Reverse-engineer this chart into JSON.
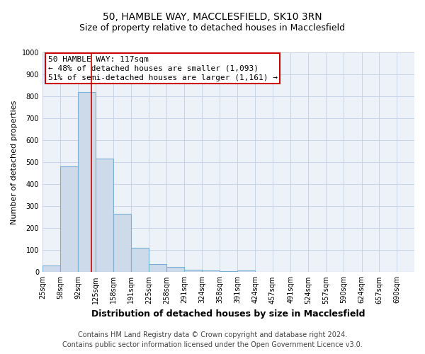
{
  "title": "50, HAMBLE WAY, MACCLESFIELD, SK10 3RN",
  "subtitle": "Size of property relative to detached houses in Macclesfield",
  "xlabel": "Distribution of detached houses by size in Macclesfield",
  "ylabel": "Number of detached properties",
  "footer_line1": "Contains HM Land Registry data © Crown copyright and database right 2024.",
  "footer_line2": "Contains public sector information licensed under the Open Government Licence v3.0.",
  "bin_labels": [
    "25sqm",
    "58sqm",
    "92sqm",
    "125sqm",
    "158sqm",
    "191sqm",
    "225sqm",
    "258sqm",
    "291sqm",
    "324sqm",
    "358sqm",
    "391sqm",
    "424sqm",
    "457sqm",
    "491sqm",
    "524sqm",
    "557sqm",
    "590sqm",
    "624sqm",
    "657sqm",
    "690sqm"
  ],
  "bin_edges": [
    25,
    58,
    92,
    125,
    158,
    191,
    225,
    258,
    291,
    324,
    358,
    391,
    424,
    457,
    491,
    524,
    557,
    590,
    624,
    657,
    690
  ],
  "bin_width": 33,
  "bin_counts": [
    30,
    480,
    820,
    515,
    265,
    110,
    38,
    22,
    12,
    8,
    5,
    8,
    0,
    0,
    0,
    0,
    0,
    0,
    0,
    0,
    0
  ],
  "bar_color": "#ccdaea",
  "bar_edge_color": "#7bafd4",
  "bar_edge_width": 0.8,
  "red_line_x": 117,
  "red_line_color": "#cc0000",
  "annotation_text_line1": "50 HAMBLE WAY: 117sqm",
  "annotation_text_line2": "← 48% of detached houses are smaller (1,093)",
  "annotation_text_line3": "51% of semi-detached houses are larger (1,161) →",
  "annotation_box_color": "#cc0000",
  "ylim": [
    0,
    1000
  ],
  "yticks": [
    0,
    100,
    200,
    300,
    400,
    500,
    600,
    700,
    800,
    900,
    1000
  ],
  "grid_color": "#c8d4e8",
  "background_color": "#edf2f9",
  "title_fontsize": 10,
  "subtitle_fontsize": 9,
  "xlabel_fontsize": 9,
  "ylabel_fontsize": 8,
  "tick_fontsize": 7,
  "annotation_fontsize": 8,
  "footer_fontsize": 7
}
